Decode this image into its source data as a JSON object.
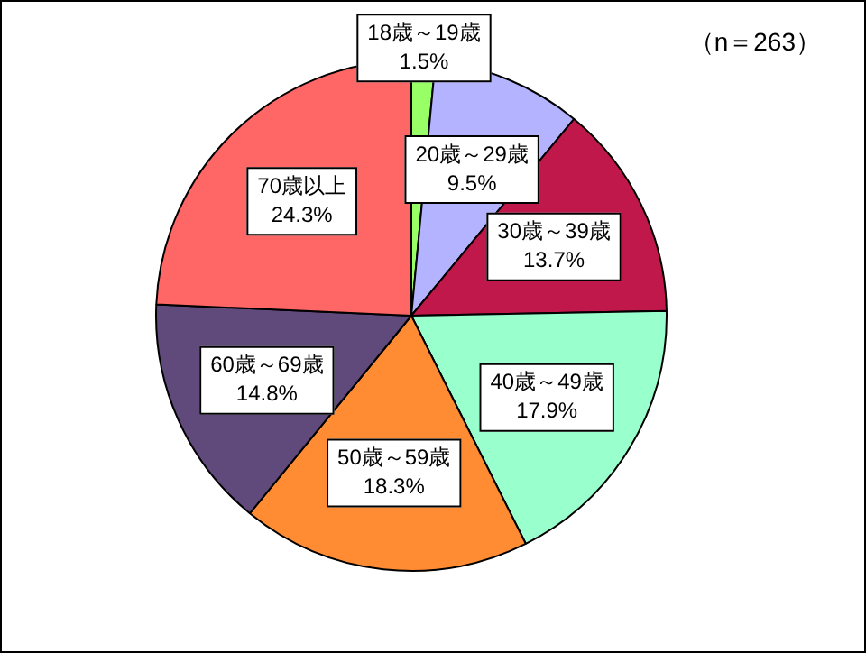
{
  "chart_data": {
    "type": "pie",
    "categories": [
      "18歳～19歳",
      "20歳～29歳",
      "30歳～39歳",
      "40歳～49歳",
      "50歳～59歳",
      "60歳～69歳",
      "70歳以上"
    ],
    "values": [
      1.5,
      9.5,
      13.7,
      17.9,
      18.3,
      14.8,
      24.3
    ],
    "colors": [
      "#99ff66",
      "#b3b3ff",
      "#c0184a",
      "#99ffcc",
      "#ff8c33",
      "#604a7b",
      "#ff6666"
    ],
    "value_labels": [
      "1.5%",
      "9.5%",
      "13.7%",
      "17.9%",
      "18.3%",
      "14.8%",
      "24.3%"
    ],
    "annotations": [
      "（n＝263）"
    ],
    "legend": false
  }
}
